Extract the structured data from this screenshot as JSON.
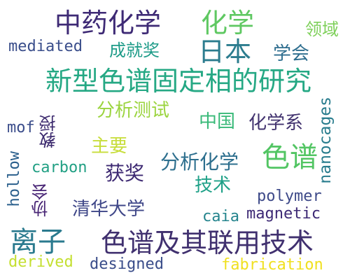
{
  "words": [
    {
      "id": "zhongyaohuaxue",
      "text": "中药化学",
      "color": "#3e2a75"
    },
    {
      "id": "huaxue",
      "text": "化学",
      "color": "#5fc862"
    },
    {
      "id": "lingyu",
      "text": "领域",
      "color": "#7ed05a"
    },
    {
      "id": "mediated",
      "text": "mediated",
      "color": "#3a4e8b"
    },
    {
      "id": "chengjiujiang",
      "text": "成就奖",
      "color": "#1f9c89"
    },
    {
      "id": "riben",
      "text": "日本",
      "color": "#2b7c8e"
    },
    {
      "id": "xuehui",
      "text": "学会",
      "color": "#2d6d8e"
    },
    {
      "id": "xinxing",
      "text": "新型色谱固定相的研究",
      "color": "#25a884"
    },
    {
      "id": "nanocages",
      "text": "nanocages",
      "color": "#287c8d"
    },
    {
      "id": "fenxiceshi",
      "text": "分析测试",
      "color": "#9bd43f"
    },
    {
      "id": "zhongguo",
      "text": "中国",
      "color": "#38b978"
    },
    {
      "id": "huaxuexi",
      "text": "化学系",
      "color": "#42336f"
    },
    {
      "id": "mof",
      "text": "mof",
      "color": "#3a4c8a"
    },
    {
      "id": "jiaoshou",
      "text": "教授",
      "color": "#3c2a6e"
    },
    {
      "id": "zhuyao",
      "text": "主要",
      "color": "#c7dd3a"
    },
    {
      "id": "sepu",
      "text": "色谱",
      "color": "#52c563"
    },
    {
      "id": "hollow",
      "text": "hollow",
      "color": "#2a5f8c"
    },
    {
      "id": "carbon",
      "text": "carbon",
      "color": "#22a084"
    },
    {
      "id": "fenxihuaxue",
      "text": "分析化学",
      "color": "#2d6f8e"
    },
    {
      "id": "huojiang",
      "text": "获奖",
      "color": "#3d2972"
    },
    {
      "id": "jishu",
      "text": "技术",
      "color": "#1fa188"
    },
    {
      "id": "xiehui",
      "text": "协会",
      "color": "#482575"
    },
    {
      "id": "polymer",
      "text": "polymer",
      "color": "#3e4a89"
    },
    {
      "id": "qinghua",
      "text": "清华大学",
      "color": "#3f4788"
    },
    {
      "id": "caia",
      "text": "caia",
      "color": "#26858e"
    },
    {
      "id": "magnetic",
      "text": "magnetic",
      "color": "#3d2975"
    },
    {
      "id": "lizi",
      "text": "离子",
      "color": "#2a7a8e"
    },
    {
      "id": "sepujiqi",
      "text": "色谱及其联用技术",
      "color": "#40306f"
    },
    {
      "id": "derived",
      "text": "derived",
      "color": "#c4df30"
    },
    {
      "id": "designed",
      "text": "designed",
      "color": "#3a4d8a"
    },
    {
      "id": "fabrication",
      "text": "fabrication",
      "color": "#f0e020"
    }
  ]
}
